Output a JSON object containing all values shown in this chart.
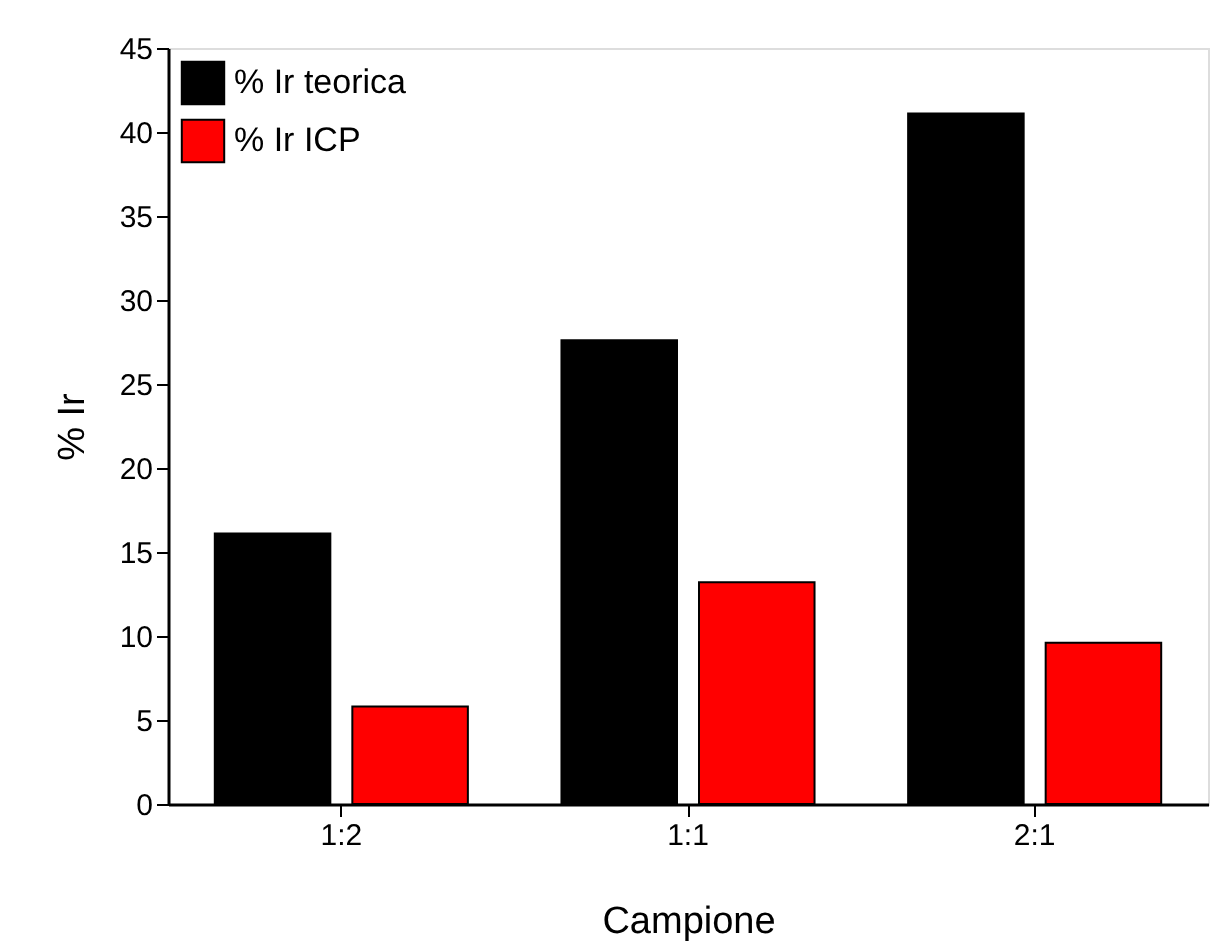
{
  "chart_data": {
    "type": "bar",
    "xlabel": "Campione",
    "ylabel": "% Ir",
    "categories": [
      "1:2",
      "1:1",
      "2:1"
    ],
    "series": [
      {
        "name": "% Ir teorica",
        "color": "#000000",
        "values": [
          16.1,
          27.6,
          41.1
        ]
      },
      {
        "name": "% Ir ICP",
        "color": "#ff0000",
        "values": [
          5.8,
          13.2,
          9.6
        ]
      }
    ],
    "ylim": [
      0,
      45
    ],
    "yticks": [
      0,
      5,
      10,
      15,
      20,
      25,
      30,
      35,
      40,
      45
    ],
    "grid": false,
    "legend": "top left"
  }
}
